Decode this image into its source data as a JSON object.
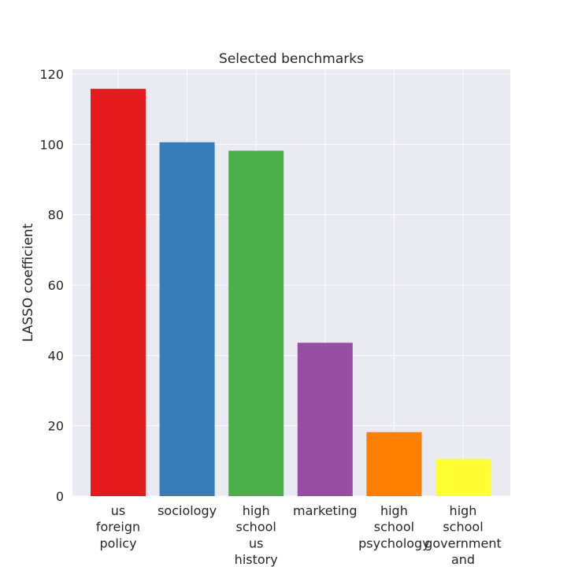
{
  "chart_data": {
    "type": "bar",
    "title": "Selected benchmarks",
    "xlabel": "",
    "ylabel": "LASSO coefficient",
    "ylim": [
      0,
      120
    ],
    "yticks": [
      0,
      20,
      40,
      60,
      80,
      100,
      120
    ],
    "grid": true,
    "background": "#EAEAF2",
    "categories": [
      "us foreign policy",
      "sociology",
      "high school us history",
      "marketing",
      "high school psychology",
      "high school government and"
    ],
    "category_lines": [
      [
        "us",
        "foreign",
        "policy"
      ],
      [
        "sociology"
      ],
      [
        "high",
        "school",
        "us",
        "history"
      ],
      [
        "marketing"
      ],
      [
        "high",
        "school",
        "psychology"
      ],
      [
        "high",
        "school",
        "government",
        "and"
      ]
    ],
    "values": [
      115.8,
      100.6,
      98.2,
      43.6,
      18.2,
      10.6
    ],
    "colors": [
      "#E41A1C",
      "#377EB8",
      "#4DAF4A",
      "#984EA3",
      "#FF7F00",
      "#FFFF33"
    ]
  }
}
